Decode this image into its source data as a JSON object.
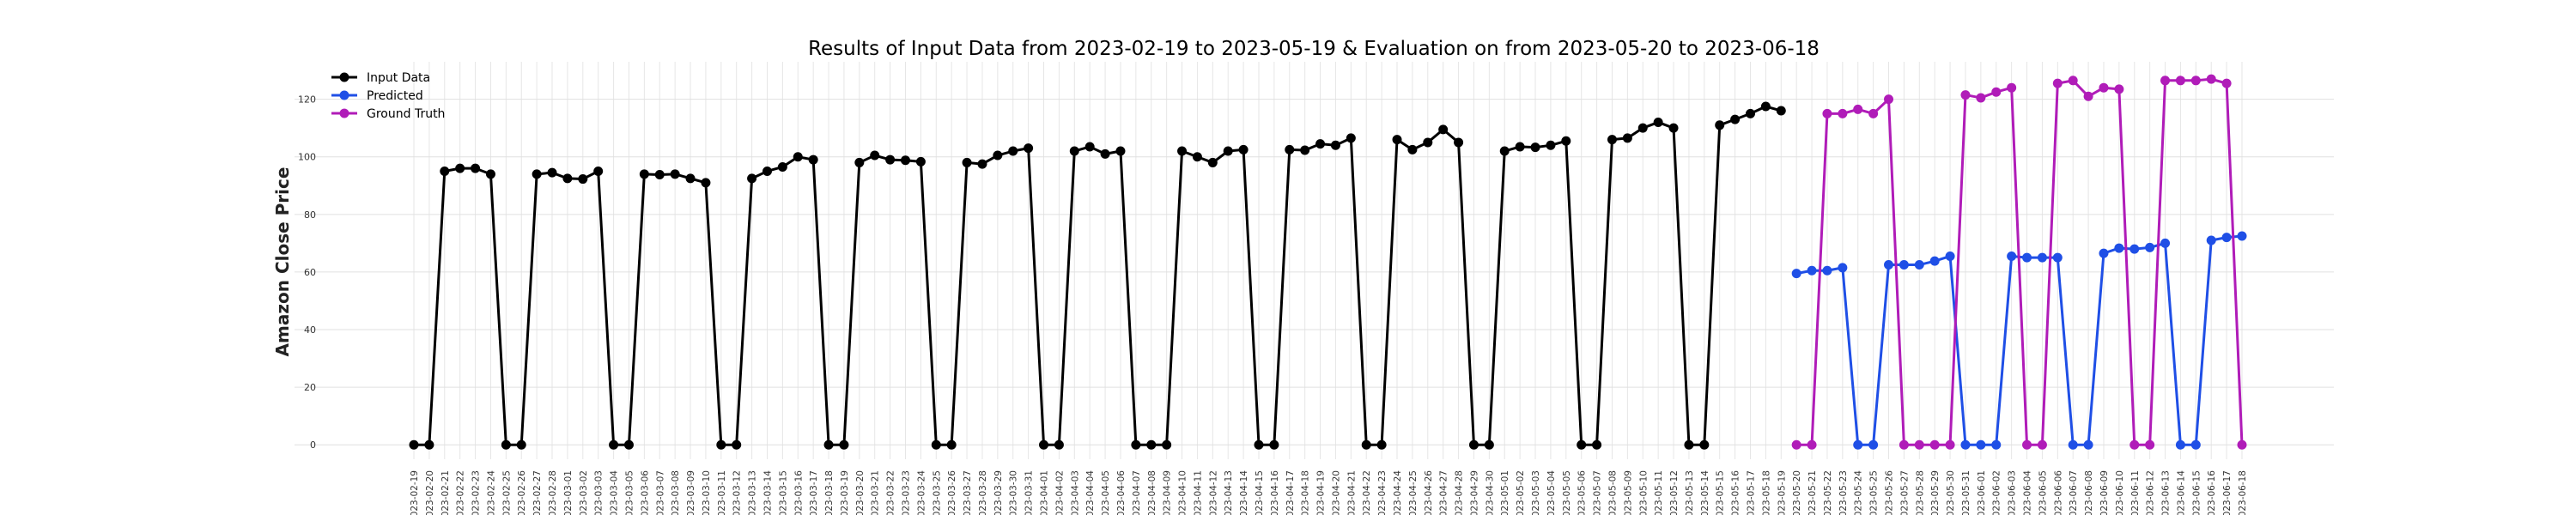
{
  "chart_data": {
    "type": "line",
    "title": "Results of Input Data from 2023-02-19 to 2023-05-19 & Evaluation on from 2023-05-20 to 2023-06-18",
    "xlabel": "",
    "ylabel": "Amazon Close Price",
    "ylim": [
      -5,
      133
    ],
    "yticks": [
      0,
      20,
      40,
      60,
      80,
      100,
      120
    ],
    "grid": true,
    "legend_position": "top-left",
    "x_start": "2023-02-19",
    "x_end": "2023-06-18",
    "series": [
      {
        "name": "Input Data",
        "color": "#000000",
        "x": [
          "2023-02-19",
          "2023-02-20",
          "2023-02-21",
          "2023-02-22",
          "2023-02-23",
          "2023-02-24",
          "2023-02-25",
          "2023-02-26",
          "2023-02-27",
          "2023-02-28",
          "2023-03-01",
          "2023-03-02",
          "2023-03-03",
          "2023-03-04",
          "2023-03-05",
          "2023-03-06",
          "2023-03-07",
          "2023-03-08",
          "2023-03-09",
          "2023-03-10",
          "2023-03-11",
          "2023-03-12",
          "2023-03-13",
          "2023-03-14",
          "2023-03-15",
          "2023-03-16",
          "2023-03-17",
          "2023-03-18",
          "2023-03-19",
          "2023-03-20",
          "2023-03-21",
          "2023-03-22",
          "2023-03-23",
          "2023-03-24",
          "2023-03-25",
          "2023-03-26",
          "2023-03-27",
          "2023-03-28",
          "2023-03-29",
          "2023-03-30",
          "2023-03-31",
          "2023-04-01",
          "2023-04-02",
          "2023-04-03",
          "2023-04-04",
          "2023-04-05",
          "2023-04-06",
          "2023-04-07",
          "2023-04-08",
          "2023-04-09",
          "2023-04-10",
          "2023-04-11",
          "2023-04-12",
          "2023-04-13",
          "2023-04-14",
          "2023-04-15",
          "2023-04-16",
          "2023-04-17",
          "2023-04-18",
          "2023-04-19",
          "2023-04-20",
          "2023-04-21",
          "2023-04-22",
          "2023-04-23",
          "2023-04-24",
          "2023-04-25",
          "2023-04-26",
          "2023-04-27",
          "2023-04-28",
          "2023-04-29",
          "2023-04-30",
          "2023-05-01",
          "2023-05-02",
          "2023-05-03",
          "2023-05-04",
          "2023-05-05",
          "2023-05-06",
          "2023-05-07",
          "2023-05-08",
          "2023-05-09",
          "2023-05-10",
          "2023-05-11",
          "2023-05-12",
          "2023-05-13",
          "2023-05-14",
          "2023-05-15",
          "2023-05-16",
          "2023-05-17",
          "2023-05-18",
          "2023-05-19"
        ],
        "values": [
          0,
          0,
          95,
          96,
          96,
          94,
          0,
          0,
          94,
          94.5,
          92.5,
          92.3,
          95,
          0,
          0,
          94,
          93.8,
          94,
          92.5,
          91,
          0,
          0,
          92.5,
          95,
          96.5,
          100,
          99,
          0,
          0,
          98,
          100.5,
          99,
          98.8,
          98.3,
          0,
          0,
          98,
          97.5,
          100.5,
          102,
          103,
          0,
          0,
          102,
          103.5,
          101,
          102,
          0,
          0,
          0,
          102,
          100,
          98,
          102,
          102.5,
          0,
          0,
          102.5,
          102.3,
          104.5,
          104,
          106.5,
          0,
          0,
          106,
          102.5,
          105,
          109.5,
          105,
          0,
          0,
          102,
          103.5,
          103.3,
          104,
          105.5,
          0,
          0,
          106,
          106.5,
          110,
          112,
          110,
          0,
          0,
          111,
          113,
          115,
          117.5,
          116
        ]
      },
      {
        "name": "Predicted",
        "color": "#1f4fe6",
        "x": [
          "2023-05-20",
          "2023-05-21",
          "2023-05-22",
          "2023-05-23",
          "2023-05-24",
          "2023-05-25",
          "2023-05-26",
          "2023-05-27",
          "2023-05-28",
          "2023-05-29",
          "2023-05-30",
          "2023-05-31",
          "2023-06-01",
          "2023-06-02",
          "2023-06-03",
          "2023-06-04",
          "2023-06-05",
          "2023-06-06",
          "2023-06-07",
          "2023-06-08",
          "2023-06-09",
          "2023-06-10",
          "2023-06-11",
          "2023-06-12",
          "2023-06-13",
          "2023-06-14",
          "2023-06-15",
          "2023-06-16",
          "2023-06-17",
          "2023-06-18"
        ],
        "values": [
          59.5,
          60.5,
          60.5,
          61.5,
          0,
          0,
          62.5,
          62.5,
          62.5,
          63.8,
          65.5,
          0,
          0,
          0,
          65.5,
          65,
          65,
          65,
          0,
          0,
          66.5,
          68.3,
          68,
          68.5,
          70,
          0,
          0,
          71,
          72,
          72.5
        ]
      },
      {
        "name": "Ground Truth",
        "color": "#b01cb8",
        "x": [
          "2023-05-20",
          "2023-05-21",
          "2023-05-22",
          "2023-05-23",
          "2023-05-24",
          "2023-05-25",
          "2023-05-26",
          "2023-05-27",
          "2023-05-28",
          "2023-05-29",
          "2023-05-30",
          "2023-05-31",
          "2023-06-01",
          "2023-06-02",
          "2023-06-03",
          "2023-06-04",
          "2023-06-05",
          "2023-06-06",
          "2023-06-07",
          "2023-06-08",
          "2023-06-09",
          "2023-06-10",
          "2023-06-11",
          "2023-06-12",
          "2023-06-13",
          "2023-06-14",
          "2023-06-15",
          "2023-06-16",
          "2023-06-17",
          "2023-06-18"
        ],
        "values": [
          0,
          0,
          115,
          115,
          116.5,
          115,
          120,
          0,
          0,
          0,
          0,
          121.5,
          120.5,
          122.5,
          124,
          0,
          0,
          125.5,
          126.5,
          121,
          124,
          123.5,
          0,
          0,
          126.5,
          126.5,
          126.5,
          127,
          125.5,
          0
        ]
      }
    ]
  }
}
